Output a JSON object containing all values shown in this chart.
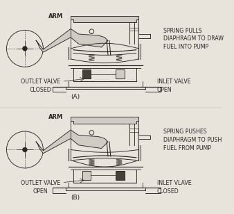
{
  "bg_color": "#e8e4dc",
  "line_color": "#2a2520",
  "fill_light": "#d0ccc4",
  "fill_dark": "#454038",
  "font_size_label": 6.0,
  "font_size_title": 6.5,
  "font_family": "DejaVu Sans",
  "panels": [
    {
      "mode": "A",
      "label_title": "(A)",
      "arm_label": "ARM",
      "right_text": "SPRING PULLS\nDIAPHRAGM TO DRAW\nFUEL INTO PUMP",
      "outlet_text": "OUTLET VALVE\nCLOSED",
      "inlet_text": "INLET VALVE\nOPEN",
      "diaphragm_up": true
    },
    {
      "mode": "B",
      "label_title": "(B)",
      "arm_label": "ARM",
      "right_text": "SPRING PUSHES\nDIAPHRAGM TO PUSH\nFUEL FROM PUMP",
      "outlet_text": "OUTLET VALVE\nOPEN",
      "inlet_text": "INLET VLAVE\nCLOSED",
      "diaphragm_up": false
    }
  ]
}
